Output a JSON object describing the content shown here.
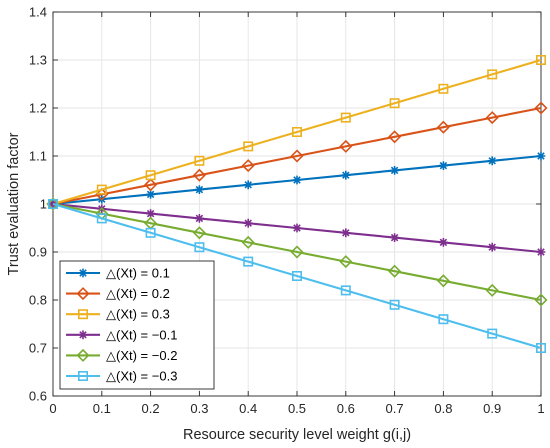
{
  "chart_data": {
    "type": "line",
    "title": "",
    "xlabel": "Resource security level weight g(i,j)",
    "ylabel": "Trust evaluation factor",
    "xlim": [
      0,
      1
    ],
    "ylim": [
      0.6,
      1.4
    ],
    "grid": true,
    "legend_position": "bottom-left",
    "x": [
      0,
      0.1,
      0.2,
      0.3,
      0.4,
      0.5,
      0.6,
      0.7,
      0.8,
      0.9,
      1
    ],
    "x_ticks": [
      "0",
      "0.1",
      "0.2",
      "0.3",
      "0.4",
      "0.5",
      "0.6",
      "0.7",
      "0.8",
      "0.9",
      "1"
    ],
    "y_ticks": [
      "0.6",
      "0.7",
      "0.8",
      "0.9",
      "1",
      "1.1",
      "1.2",
      "1.3",
      "1.4"
    ],
    "series": [
      {
        "name": "△(Xt) = 0.1",
        "color": "#0072BD",
        "marker": "star",
        "values": [
          1,
          1.01,
          1.02,
          1.03,
          1.04,
          1.05,
          1.06,
          1.07,
          1.08,
          1.09,
          1.1
        ]
      },
      {
        "name": "△(Xt) = 0.2",
        "color": "#D95319",
        "marker": "diamond",
        "values": [
          1,
          1.02,
          1.04,
          1.06,
          1.08,
          1.1,
          1.12,
          1.14,
          1.16,
          1.18,
          1.2
        ]
      },
      {
        "name": "△(Xt) = 0.3",
        "color": "#EDB120",
        "marker": "square",
        "values": [
          1,
          1.03,
          1.06,
          1.09,
          1.12,
          1.15,
          1.18,
          1.21,
          1.24,
          1.27,
          1.3
        ]
      },
      {
        "name": "△(Xt) = −0.1",
        "color": "#7E2F8E",
        "marker": "star",
        "values": [
          1,
          0.99,
          0.98,
          0.97,
          0.96,
          0.95,
          0.94,
          0.93,
          0.92,
          0.91,
          0.9
        ]
      },
      {
        "name": "△(Xt) = −0.2",
        "color": "#77AC30",
        "marker": "diamond",
        "values": [
          1,
          0.98,
          0.96,
          0.94,
          0.92,
          0.9,
          0.88,
          0.86,
          0.84,
          0.82,
          0.8
        ]
      },
      {
        "name": "△(Xt) = −0.3",
        "color": "#4DBEEE",
        "marker": "square",
        "values": [
          1,
          0.97,
          0.94,
          0.91,
          0.88,
          0.85,
          0.82,
          0.79,
          0.76,
          0.73,
          0.7
        ]
      }
    ]
  }
}
